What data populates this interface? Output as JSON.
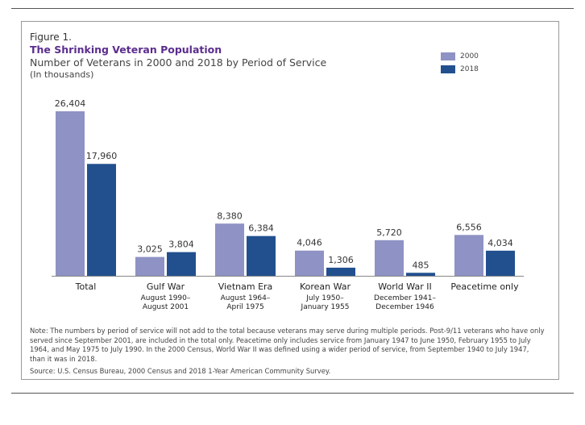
{
  "header": {
    "figure_label": "Figure 1.",
    "title": "The Shrinking Veteran Population",
    "subtitle": "Number of Veterans in 2000 and 2018 by Period of Service",
    "unit_note": "(In thousands)"
  },
  "colors": {
    "series_2000": "#8e92c4",
    "series_2018": "#22508f"
  },
  "chart_data": {
    "type": "bar",
    "title": "The Shrinking Veteran Population",
    "subtitle": "Number of Veterans in 2000 and 2018 by Period of Service",
    "ylabel": "(In thousands)",
    "ylim": [
      0,
      26404
    ],
    "grid": false,
    "legend_position": "top-right",
    "categories": [
      {
        "label": "Total",
        "sub1": "",
        "sub2": ""
      },
      {
        "label": "Gulf War",
        "sub1": "August 1990–",
        "sub2": "August 2001"
      },
      {
        "label": "Vietnam Era",
        "sub1": "August 1964–",
        "sub2": "April 1975"
      },
      {
        "label": "Korean War",
        "sub1": "July 1950–",
        "sub2": "January 1955"
      },
      {
        "label": "World War II",
        "sub1": "December 1941–",
        "sub2": "December 1946"
      },
      {
        "label": "Peacetime only",
        "sub1": "",
        "sub2": ""
      }
    ],
    "series": [
      {
        "name": "2000",
        "values": [
          26404,
          3025,
          8380,
          4046,
          5720,
          6556
        ],
        "labels": [
          "26,404",
          "3,025",
          "8,380",
          "4,046",
          "5,720",
          "6,556"
        ]
      },
      {
        "name": "2018",
        "values": [
          17960,
          3804,
          6384,
          1306,
          485,
          4034
        ],
        "labels": [
          "17,960",
          "3,804",
          "6,384",
          "1,306",
          "485",
          "4,034"
        ]
      }
    ]
  },
  "footer": {
    "note": "Note: The numbers by period of service will not add to the total because veterans may serve during multiple periods. Post-9/11 veterans who have only served since September 2001, are included in the total only. Peacetime only includes service from January 1947 to June 1950, February 1955 to July 1964, and May 1975 to July 1990. In the 2000 Census, World War II was defined using a wider period of service, from September 1940 to July 1947, than it was in 2018.",
    "source": "Source: U.S. Census Bureau, 2000 Census and 2018 1-Year American Community Survey."
  }
}
